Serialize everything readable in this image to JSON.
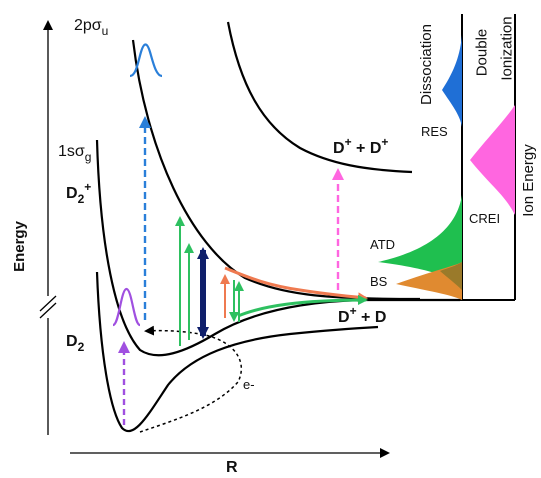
{
  "axes": {
    "y_label": "Energy",
    "x_label": "R"
  },
  "curves": {
    "upper_state": {
      "name": "2pσ",
      "subscript": "u"
    },
    "ground_ion_state": {
      "name": "1sσ",
      "subscript": "g"
    },
    "ion": {
      "name": "D",
      "subscript": "2",
      "superscript": "+"
    },
    "neutral": {
      "name": "D",
      "subscript": "2"
    }
  },
  "limits": {
    "coulomb": {
      "base1": "D",
      "sup1": "+",
      "join": " + ",
      "base2": "D",
      "sup2": "+"
    },
    "dissociation": {
      "base1": "D",
      "sup1": "+",
      "join": " + D"
    }
  },
  "electron_label": "e-",
  "spectrum": {
    "titles": {
      "dissociation": "Dissociation",
      "double_line1": "Double",
      "double_line2": "Ionization",
      "ion_energy": "Ion Energy"
    },
    "peaks": {
      "res": "RES",
      "atd": "ATD",
      "bs": "BS",
      "crei": "CREI"
    }
  },
  "colors": {
    "curves": "#000000",
    "res": "#1f6fd6",
    "crei": "#ff66e0",
    "atd": "#1fbf4f",
    "bs": "#e08a30",
    "navy": "#0f1f6b",
    "purple": "#a050e0",
    "pink_arrow": "#ff66e0",
    "blue_arrow": "#2a7fd9",
    "green_arrow": "#2ec060",
    "orange_arrow": "#ef7a50"
  }
}
